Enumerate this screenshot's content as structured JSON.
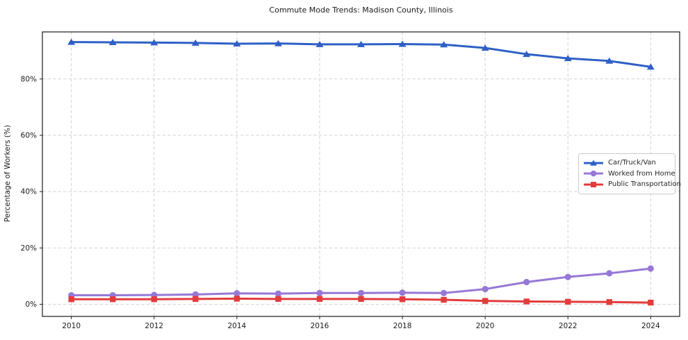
{
  "chart_data": {
    "type": "line",
    "title": "Commute Mode Trends: Madison County, Illinois",
    "xlabel": "",
    "ylabel": "Percentage of Workers (%)",
    "x": [
      2010,
      2011,
      2012,
      2013,
      2014,
      2015,
      2016,
      2017,
      2018,
      2019,
      2020,
      2021,
      2022,
      2023,
      2024
    ],
    "series": [
      {
        "name": "Car/Truck/Van",
        "color": "#2e5fc6",
        "marker": "triangle",
        "values": [
          93.1,
          93.0,
          92.9,
          92.8,
          92.5,
          92.6,
          92.3,
          92.3,
          92.4,
          92.2,
          91.0,
          88.8,
          87.3,
          86.4,
          84.3
        ]
      },
      {
        "name": "Worked from Home",
        "color": "#9778d6",
        "marker": "circle",
        "values": [
          3.2,
          3.2,
          3.3,
          3.5,
          3.9,
          3.8,
          4.0,
          4.0,
          4.1,
          4.0,
          5.4,
          7.9,
          9.7,
          11.0,
          12.7
        ]
      },
      {
        "name": "Public Transportation",
        "color": "#e23c3c",
        "marker": "square",
        "values": [
          1.8,
          1.8,
          1.8,
          1.9,
          2.0,
          1.9,
          1.9,
          1.9,
          1.8,
          1.6,
          1.2,
          1.0,
          0.9,
          0.8,
          0.6
        ]
      }
    ],
    "xticks": [
      2010,
      2012,
      2014,
      2016,
      2018,
      2020,
      2022,
      2024
    ],
    "yticks": [
      0,
      20,
      40,
      60,
      80
    ],
    "ytick_suffix": "%",
    "xlim": [
      2009.3,
      2024.7
    ],
    "ylim": [
      -4.3,
      96.7
    ],
    "grid": true,
    "grid_style": "dashed",
    "legend_position": "center right",
    "colors": {
      "grid": "#d2d2d2",
      "spine": "#1a1a1a",
      "tick_text": "#1a1a1a",
      "background": "#ffffff"
    }
  }
}
